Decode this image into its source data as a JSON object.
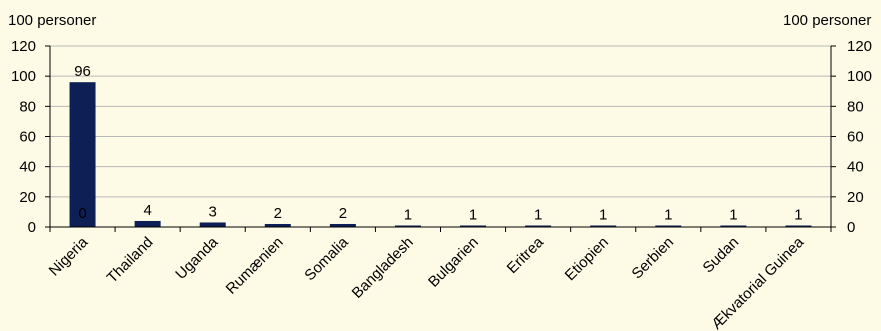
{
  "chart_data": {
    "type": "bar",
    "categories": [
      "Nigeria",
      "Thailand",
      "Uganda",
      "Rumænien",
      "Somalia",
      "Bangladesh",
      "Bulgarien",
      "Eritrea",
      "Etiopien",
      "Serbien",
      "Sudan",
      "Ækvatorial Guinea"
    ],
    "values": [
      96,
      4,
      3,
      2,
      2,
      1,
      1,
      1,
      1,
      1,
      1,
      1
    ],
    "data_labels": [
      "96",
      "4",
      "3",
      "2",
      "2",
      "1",
      "1",
      "1",
      "1",
      "1",
      "1",
      "1"
    ],
    "stray_label": "0",
    "ylabel_left": "100 personer",
    "ylabel_right": "100 personer",
    "ylim": [
      0,
      120
    ],
    "yticks": [
      0,
      20,
      40,
      60,
      80,
      100,
      120
    ],
    "grid": true,
    "bar_color": "#0d1f55",
    "grid_color": "#b8b8b8"
  }
}
